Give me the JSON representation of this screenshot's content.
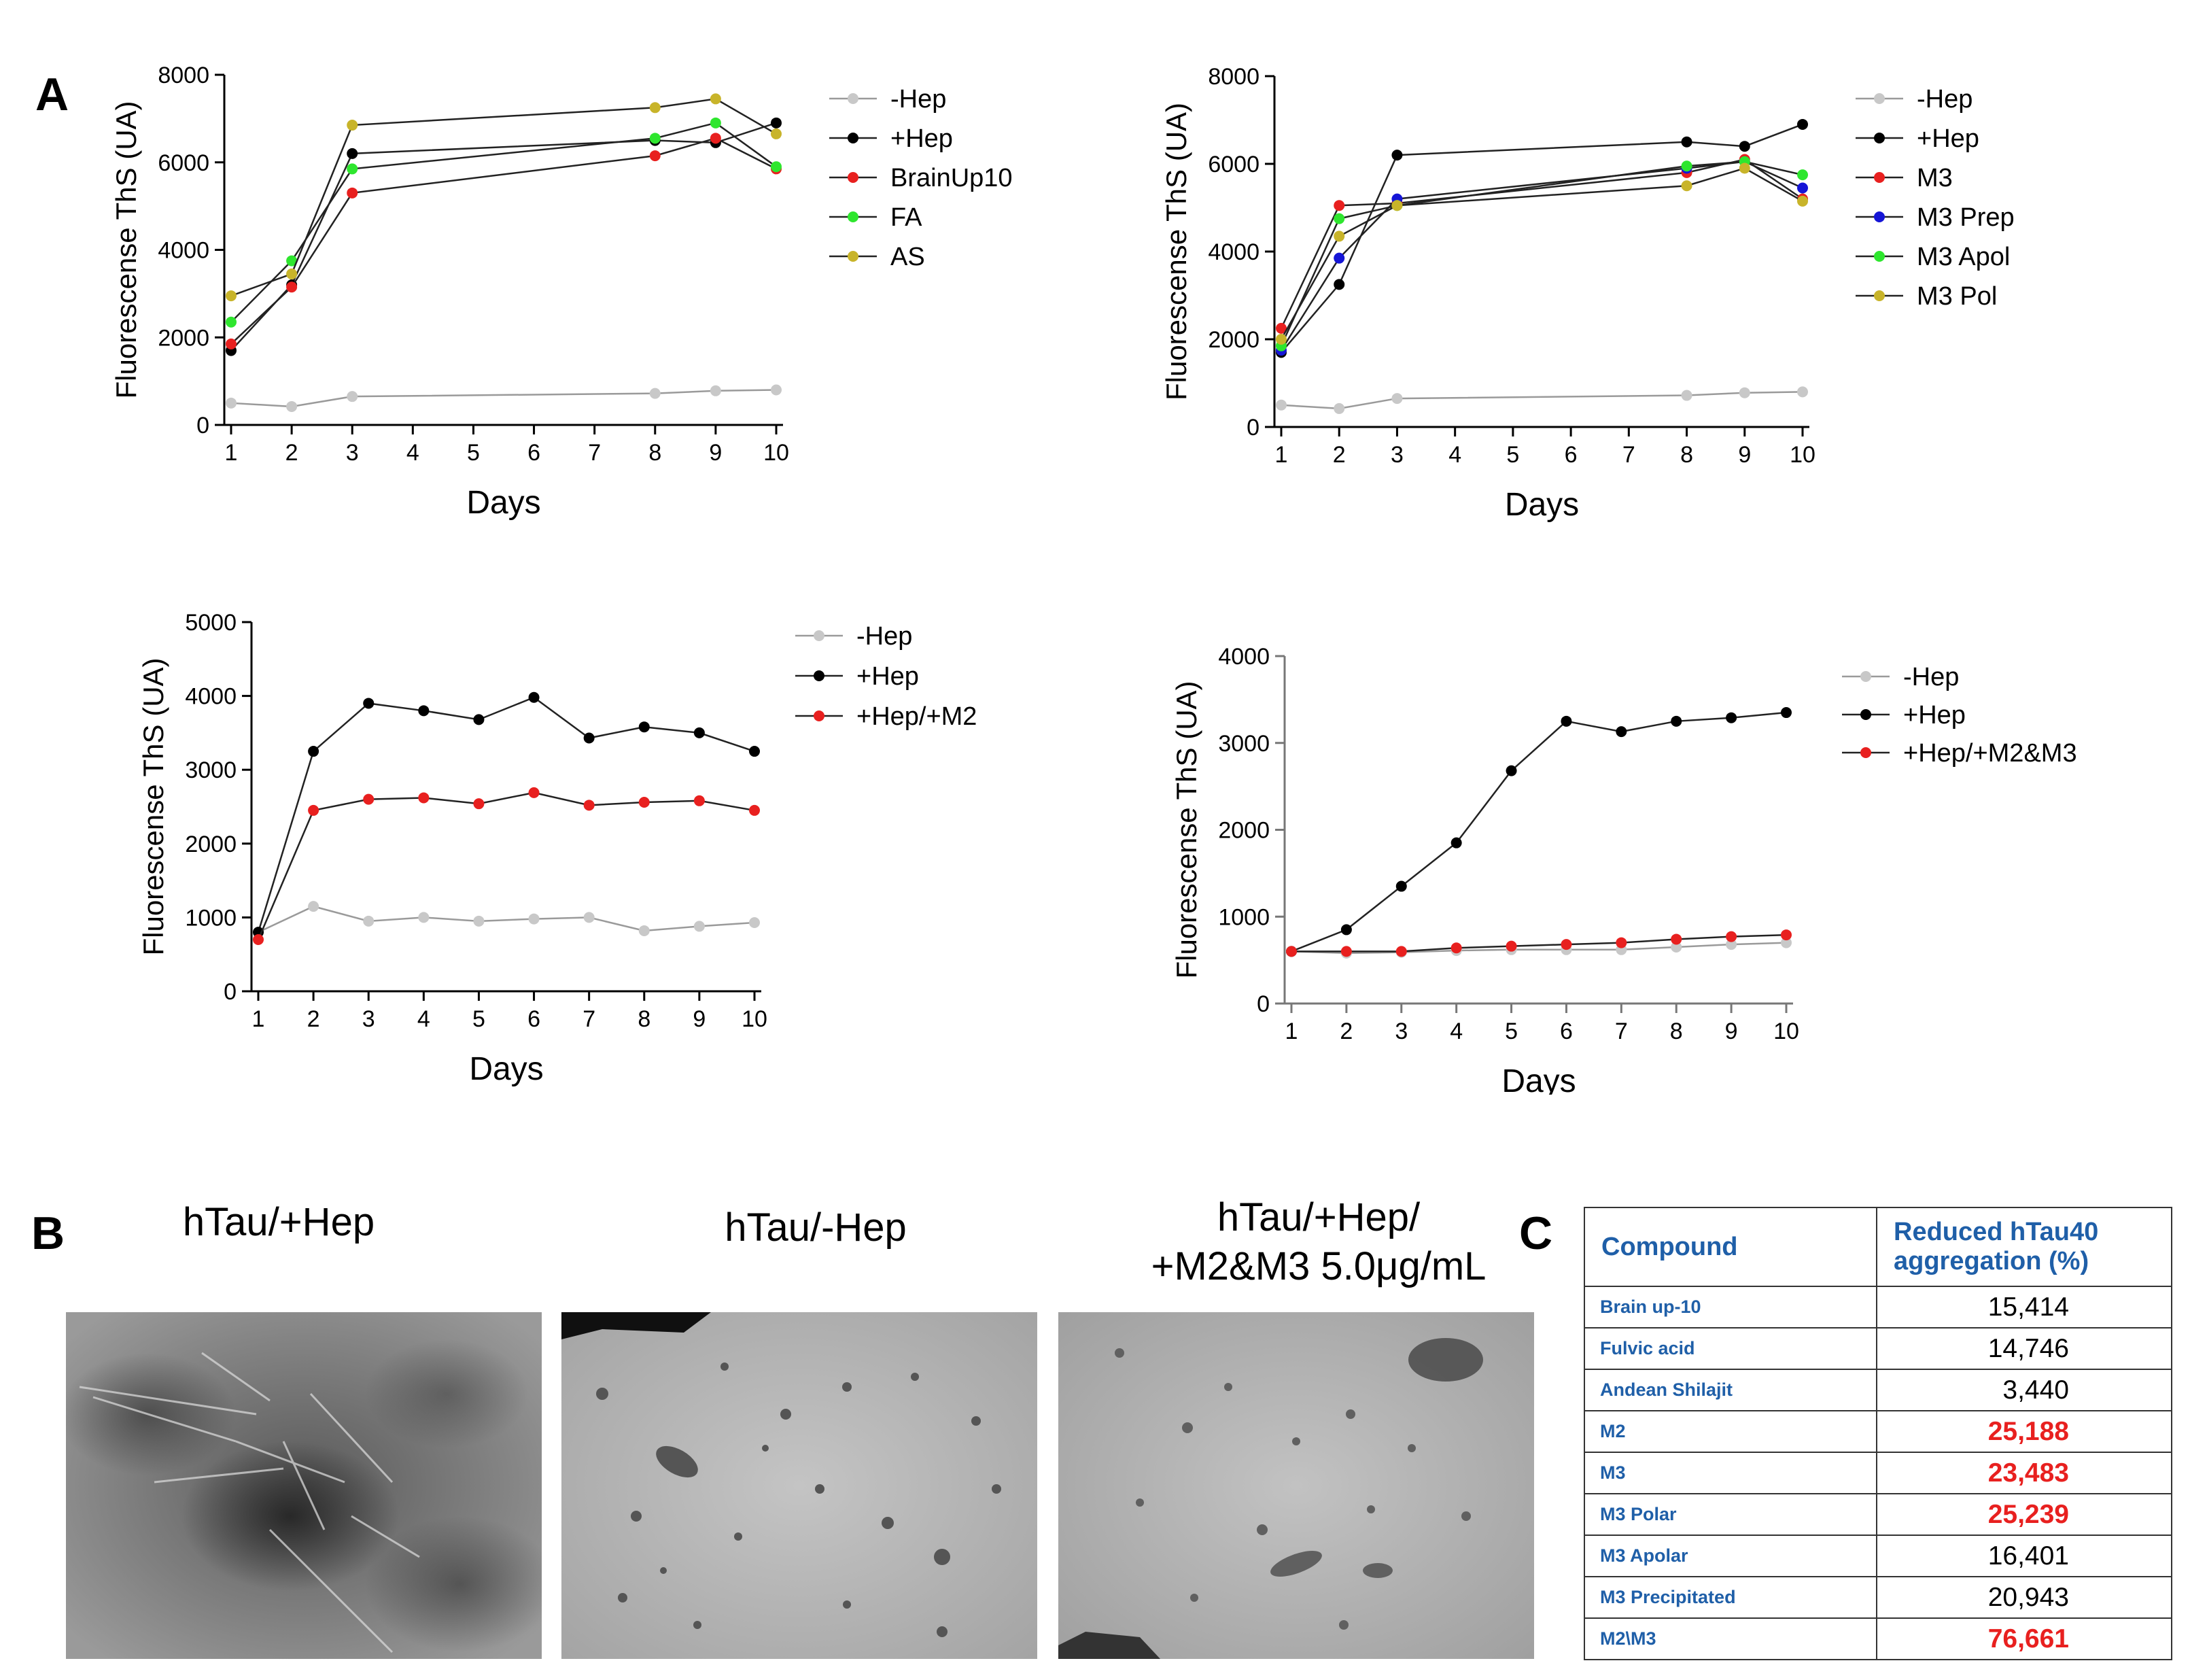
{
  "panel_labels": {
    "a": "A",
    "b": "B",
    "c": "C"
  },
  "chart_data": [
    {
      "type": "line",
      "xlabel": "Days",
      "ylabel": "Fluorescense ThS (UA)",
      "ylim": [
        0,
        8000
      ],
      "yticks": [
        0,
        2000,
        4000,
        6000,
        8000
      ],
      "xticks": [
        1,
        2,
        3,
        4,
        5,
        6,
        7,
        8,
        9,
        10
      ],
      "legend_position": "right",
      "series": [
        {
          "name": "-Hep",
          "color": "#c8c8c8",
          "x": [
            1,
            2,
            3,
            8,
            9,
            10
          ],
          "values": [
            500,
            420,
            650,
            720,
            780,
            800
          ]
        },
        {
          "name": "+Hep",
          "color": "#000000",
          "x": [
            1,
            2,
            3,
            8,
            9,
            10
          ],
          "values": [
            1700,
            3200,
            6200,
            6500,
            6450,
            6900
          ]
        },
        {
          "name": "BrainUp10",
          "color": "#e8201f",
          "x": [
            1,
            2,
            3,
            8,
            9,
            10
          ],
          "values": [
            1850,
            3150,
            5300,
            6150,
            6550,
            5850
          ]
        },
        {
          "name": "FA",
          "color": "#2ee62e",
          "x": [
            1,
            2,
            3,
            8,
            9,
            10
          ],
          "values": [
            2350,
            3750,
            5850,
            6550,
            6900,
            5900
          ]
        },
        {
          "name": "AS",
          "color": "#c8b42a",
          "x": [
            1,
            2,
            3,
            8,
            9,
            10
          ],
          "values": [
            2950,
            3450,
            6850,
            7250,
            7450,
            6650
          ]
        }
      ]
    },
    {
      "type": "line",
      "xlabel": "Days",
      "ylabel": "Fluorescense ThS (UA)",
      "ylim": [
        0,
        8000
      ],
      "yticks": [
        0,
        2000,
        4000,
        6000,
        8000
      ],
      "xticks": [
        1,
        2,
        3,
        4,
        5,
        6,
        7,
        8,
        9,
        10
      ],
      "legend_position": "right",
      "series": [
        {
          "name": "-Hep",
          "color": "#c8c8c8",
          "x": [
            1,
            2,
            3,
            8,
            9,
            10
          ],
          "values": [
            500,
            420,
            650,
            720,
            780,
            800
          ]
        },
        {
          "name": "+Hep",
          "color": "#000000",
          "x": [
            1,
            2,
            3,
            8,
            9,
            10
          ],
          "values": [
            1700,
            3250,
            6200,
            6500,
            6400,
            6900
          ]
        },
        {
          "name": "M3",
          "color": "#e8201f",
          "x": [
            1,
            2,
            3,
            8,
            9,
            10
          ],
          "values": [
            2250,
            5050,
            5100,
            5800,
            6100,
            5200
          ]
        },
        {
          "name": "M3 Prep",
          "color": "#1515d6",
          "x": [
            1,
            2,
            3,
            8,
            9,
            10
          ],
          "values": [
            1750,
            3850,
            5200,
            5900,
            6050,
            5450
          ]
        },
        {
          "name": "M3 Apol",
          "color": "#2ee62e",
          "x": [
            1,
            2,
            3,
            8,
            9,
            10
          ],
          "values": [
            1850,
            4750,
            5050,
            5950,
            6050,
            5750
          ]
        },
        {
          "name": "M3 Pol",
          "color": "#c8b42a",
          "x": [
            1,
            2,
            3,
            8,
            9,
            10
          ],
          "values": [
            2000,
            4350,
            5050,
            5500,
            5900,
            5150
          ]
        }
      ]
    },
    {
      "type": "line",
      "xlabel": "Days",
      "ylabel": "Fluorescense ThS (UA)",
      "ylim": [
        0,
        5000
      ],
      "yticks": [
        0,
        1000,
        2000,
        3000,
        4000,
        5000
      ],
      "xticks": [
        1,
        2,
        3,
        4,
        5,
        6,
        7,
        8,
        9,
        10
      ],
      "legend_position": "right",
      "series": [
        {
          "name": "-Hep",
          "color": "#c8c8c8",
          "x": [
            1,
            2,
            3,
            4,
            5,
            6,
            7,
            8,
            9,
            10
          ],
          "values": [
            800,
            1150,
            950,
            1000,
            950,
            980,
            1000,
            820,
            880,
            930
          ]
        },
        {
          "name": "+Hep",
          "color": "#000000",
          "x": [
            1,
            2,
            3,
            4,
            5,
            6,
            7,
            8,
            9,
            10
          ],
          "values": [
            800,
            3250,
            3900,
            3800,
            3680,
            3980,
            3430,
            3580,
            3500,
            3250
          ]
        },
        {
          "name": "+Hep/+M2",
          "color": "#e8201f",
          "x": [
            1,
            2,
            3,
            4,
            5,
            6,
            7,
            8,
            9,
            10
          ],
          "values": [
            700,
            2450,
            2600,
            2620,
            2540,
            2690,
            2520,
            2560,
            2580,
            2450
          ]
        }
      ]
    },
    {
      "type": "line",
      "xlabel": "Days",
      "ylabel": "Fluorescense ThS (UA)",
      "ylim": [
        0,
        4000
      ],
      "yticks": [
        0,
        1000,
        2000,
        3000,
        4000
      ],
      "xticks": [
        1,
        2,
        3,
        4,
        5,
        6,
        7,
        8,
        9,
        10
      ],
      "legend_position": "right",
      "series": [
        {
          "name": "-Hep",
          "color": "#c8c8c8",
          "x": [
            1,
            2,
            3,
            4,
            5,
            6,
            7,
            8,
            9,
            10
          ],
          "values": [
            600,
            580,
            590,
            610,
            620,
            620,
            620,
            650,
            680,
            700
          ]
        },
        {
          "name": "+Hep",
          "color": "#000000",
          "x": [
            1,
            2,
            3,
            4,
            5,
            6,
            7,
            8,
            9,
            10
          ],
          "values": [
            600,
            850,
            1350,
            1850,
            2680,
            3250,
            3130,
            3250,
            3290,
            3350
          ]
        },
        {
          "name": "+Hep/+M2&M3",
          "color": "#e8201f",
          "x": [
            1,
            2,
            3,
            4,
            5,
            6,
            7,
            8,
            9,
            10
          ],
          "values": [
            600,
            600,
            600,
            640,
            660,
            680,
            700,
            740,
            770,
            790
          ]
        }
      ]
    }
  ],
  "tem": {
    "title1": "hTau/+Hep",
    "title2": "hTau/-Hep",
    "title3a": "hTau/+Hep/",
    "title3b": "+M2&M3 5.0μg/mL"
  },
  "table": {
    "col1": "Compound",
    "col2a": "Reduced hTau40",
    "col2b": "aggregation (%)",
    "rows": [
      {
        "compound": "Brain up-10",
        "value": "15,414",
        "highlight": false
      },
      {
        "compound": "Fulvic acid",
        "value": "14,746",
        "highlight": false
      },
      {
        "compound": "Andean Shilajit",
        "value": "3,440",
        "highlight": false
      },
      {
        "compound": "M2",
        "value": "25,188",
        "highlight": true
      },
      {
        "compound": "M3",
        "value": "23,483",
        "highlight": true
      },
      {
        "compound": "M3 Polar",
        "value": "25,239",
        "highlight": true
      },
      {
        "compound": "M3 Apolar",
        "value": "16,401",
        "highlight": false
      },
      {
        "compound": "M3 Precipitated",
        "value": "20,943",
        "highlight": false
      },
      {
        "compound": "M2\\M3",
        "value": "76,661",
        "highlight": true
      }
    ]
  }
}
